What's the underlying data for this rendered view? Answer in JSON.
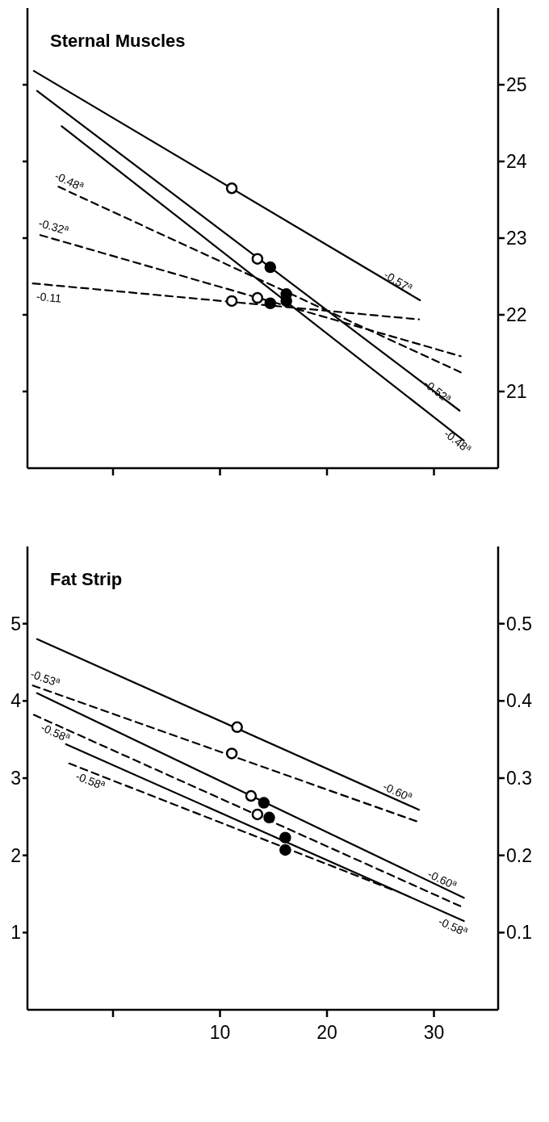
{
  "chart_data": [
    {
      "type": "line",
      "title": "Sternal Muscles",
      "xlim": [
        -8,
        36
      ],
      "xticks": [
        {
          "value": 0,
          "label": null
        },
        {
          "value": 10,
          "label": null
        },
        {
          "value": 20,
          "label": null
        },
        {
          "value": 30,
          "label": null
        }
      ],
      "ylim": [
        20,
        26
      ],
      "yticks": [
        21,
        22,
        23,
        24,
        25
      ],
      "tick_labels": "y",
      "grid": false,
      "marker": "none",
      "series": [
        {
          "type": "line",
          "color": "#000000",
          "line_style": "solid",
          "x": [
            -7.4,
            28.7
          ],
          "values": [
            25.18,
            22.19
          ]
        },
        {
          "type": "line",
          "color": "#000000",
          "line_style": "solid",
          "x": [
            -7.1,
            32.4
          ],
          "values": [
            24.92,
            20.75
          ]
        },
        {
          "type": "line",
          "color": "#000000",
          "line_style": "solid",
          "x": [
            -4.8,
            32.8
          ],
          "values": [
            24.46,
            20.36
          ]
        },
        {
          "type": "line",
          "color": "#000000",
          "line_style": "dashed",
          "x": [
            -5.1,
            32.5
          ],
          "values": [
            23.67,
            21.25
          ]
        },
        {
          "type": "line",
          "color": "#000000",
          "line_style": "dashed",
          "x": [
            -6.8,
            32.5
          ],
          "values": [
            23.04,
            21.46
          ]
        },
        {
          "type": "line",
          "color": "#000000",
          "line_style": "dashed",
          "x": [
            -7.5,
            28.6
          ],
          "values": [
            22.41,
            21.94
          ]
        },
        {
          "type": "scatter",
          "marker": "circle",
          "color": "#ffffff",
          "x": [
            11.1,
            13.5,
            11.1,
            13.5
          ],
          "values": [
            23.65,
            22.73,
            22.18,
            22.22
          ]
        },
        {
          "type": "scatter",
          "marker": "circle",
          "color": "#000000",
          "x": [
            14.7,
            16.2,
            14.7,
            16.2
          ],
          "values": [
            22.62,
            22.27,
            22.15,
            22.18
          ]
        }
      ],
      "annotations": [
        {
          "text": "-0.48$^{a}$",
          "x": -5.1,
          "y": 23.67
        },
        {
          "text": "-0.32$^{a}$",
          "x": -6.8,
          "y": 23.04
        },
        {
          "text": "-0.11",
          "x": -7.5,
          "y": 22.41
        },
        {
          "text": "-0.57$^{a}$",
          "x": 28.7,
          "y": 22.19
        },
        {
          "text": "-0.52$^{a}$",
          "x": 32.4,
          "y": 20.75
        },
        {
          "text": "-0.48$^{a}$",
          "x": 32.8,
          "y": 20.36
        }
      ]
    },
    {
      "type": "line",
      "title": "Fat Strip",
      "xlim": [
        -8,
        36
      ],
      "xticks": [
        {
          "value": 0,
          "label": null
        },
        10,
        20,
        30
      ],
      "ylim": [
        0,
        6
      ],
      "yticks": [
        1,
        2,
        3,
        4,
        5
      ],
      "y2lim": [
        0,
        0.6
      ],
      "y2ticks": [
        0.1,
        0.2,
        0.3,
        0.4,
        0.5
      ],
      "grid": false,
      "marker": "none",
      "series": [
        {
          "type": "line",
          "color": "#000000",
          "line_style": "solid",
          "x": [
            -7.1,
            28.6
          ],
          "values": [
            4.8,
            2.59
          ]
        },
        {
          "type": "line",
          "color": "#000000",
          "line_style": "dashed",
          "x": [
            -7.5,
            28.6
          ],
          "values": [
            4.2,
            2.43
          ]
        },
        {
          "type": "line",
          "color": "#000000",
          "line_style": "solid",
          "x": [
            -7.1,
            32.8
          ],
          "values": [
            4.1,
            1.45
          ]
        },
        {
          "type": "line",
          "color": "#000000",
          "line_style": "dashed",
          "x": [
            -7.4,
            32.5
          ],
          "values": [
            3.82,
            1.34
          ]
        },
        {
          "type": "line",
          "color": "#000000",
          "line_style": "solid",
          "x": [
            -4.4,
            32.8
          ],
          "values": [
            3.44,
            1.15
          ]
        },
        {
          "type": "line",
          "color": "#000000",
          "line_style": "dashed",
          "x": [
            -4.1,
            26.4
          ],
          "values": [
            3.19,
            1.54
          ]
        },
        {
          "type": "scatter",
          "marker": "circle",
          "color": "#ffffff",
          "x": [
            11.6,
            11.1,
            12.9,
            13.5
          ],
          "values": [
            3.66,
            3.32,
            2.77,
            2.53
          ]
        },
        {
          "type": "scatter",
          "marker": "circle",
          "color": "#000000",
          "x": [
            14.1,
            14.6,
            16.1,
            16.1
          ],
          "values": [
            2.68,
            2.49,
            2.23,
            2.07
          ]
        }
      ],
      "annotations": [
        {
          "text": "-0.53$^{a}$",
          "x": -7.5,
          "y": 4.2
        },
        {
          "text": "-0.58$^{a}$",
          "x": -7.4,
          "y": 3.82
        },
        {
          "text": "-0.58$^{a}$",
          "x": -4.1,
          "y": 3.19
        },
        {
          "text": "-0.60$^{a}$",
          "x": 28.6,
          "y": 2.59
        },
        {
          "text": "-0.60$^{a}$",
          "x": 32.8,
          "y": 1.45
        },
        {
          "text": "-0.58$^{a}$",
          "x": 32.8,
          "y": 1.15
        }
      ]
    }
  ]
}
